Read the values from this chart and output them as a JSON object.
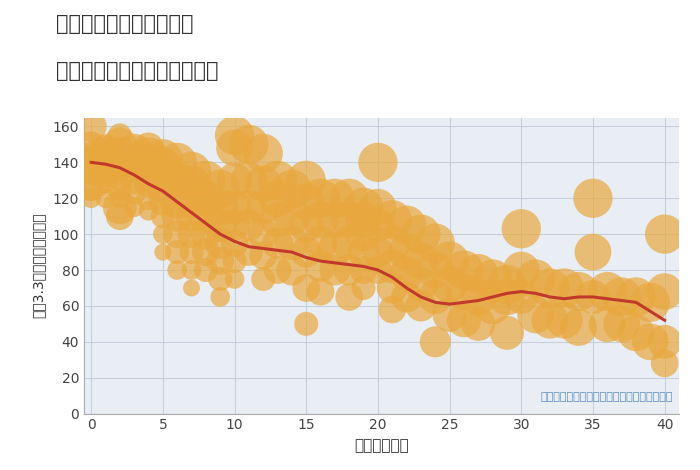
{
  "title_line1": "神奈川県座間市相模が丘",
  "title_line2": "築年数別中古マンション価格",
  "xlabel": "築年数（年）",
  "ylabel": "坪（3.3㎡）単価（万円）",
  "annotation": "円の大きさは、取引のあった物件面積を示す",
  "xlim": [
    -0.5,
    41
  ],
  "ylim": [
    0,
    165
  ],
  "xticks": [
    0,
    5,
    10,
    15,
    20,
    25,
    30,
    35,
    40
  ],
  "yticks": [
    0,
    20,
    40,
    60,
    80,
    100,
    120,
    140,
    160
  ],
  "fig_bg_color": "#f0f4f8",
  "plot_bg_color": "#e8eef4",
  "scatter_color": "#E8A83E",
  "scatter_alpha": 0.7,
  "line_color": "#C0392B",
  "line_width": 2.2,
  "trend_x": [
    0,
    1,
    2,
    3,
    4,
    5,
    6,
    7,
    8,
    9,
    10,
    11,
    12,
    13,
    14,
    15,
    16,
    17,
    18,
    19,
    20,
    21,
    22,
    23,
    24,
    25,
    26,
    27,
    28,
    29,
    30,
    31,
    32,
    33,
    34,
    35,
    36,
    37,
    38,
    39,
    40
  ],
  "trend_y": [
    140,
    139,
    137,
    133,
    128,
    124,
    118,
    112,
    106,
    100,
    96,
    93,
    92,
    91,
    90,
    87,
    85,
    84,
    83,
    82,
    80,
    76,
    70,
    65,
    62,
    61,
    62,
    63,
    65,
    67,
    68,
    67,
    65,
    64,
    65,
    65,
    64,
    63,
    62,
    57,
    52
  ],
  "scatter_x": [
    0,
    0,
    0,
    0,
    0,
    0,
    0,
    0,
    1,
    1,
    1,
    1,
    1,
    1,
    1,
    2,
    2,
    2,
    2,
    2,
    2,
    2,
    2,
    2,
    3,
    3,
    3,
    3,
    3,
    4,
    4,
    4,
    4,
    4,
    4,
    5,
    5,
    5,
    5,
    5,
    5,
    5,
    5,
    6,
    6,
    6,
    6,
    6,
    6,
    6,
    7,
    7,
    7,
    7,
    7,
    7,
    7,
    7,
    8,
    8,
    8,
    8,
    8,
    8,
    9,
    9,
    9,
    9,
    9,
    9,
    9,
    10,
    10,
    10,
    10,
    10,
    10,
    10,
    10,
    11,
    11,
    11,
    11,
    11,
    12,
    12,
    12,
    12,
    12,
    12,
    13,
    13,
    13,
    13,
    13,
    14,
    14,
    14,
    14,
    15,
    15,
    15,
    15,
    15,
    15,
    16,
    16,
    16,
    16,
    16,
    17,
    17,
    17,
    17,
    18,
    18,
    18,
    18,
    18,
    19,
    19,
    19,
    19,
    19,
    19,
    20,
    20,
    20,
    20,
    20,
    21,
    21,
    21,
    21,
    21,
    22,
    22,
    22,
    22,
    23,
    23,
    23,
    23,
    24,
    24,
    24,
    24,
    25,
    25,
    25,
    26,
    26,
    26,
    27,
    27,
    27,
    28,
    28,
    29,
    29,
    29,
    30,
    30,
    30,
    31,
    31,
    32,
    32,
    33,
    33,
    34,
    34,
    35,
    35,
    35,
    36,
    36,
    37,
    37,
    38,
    38,
    39,
    39,
    40,
    40,
    40,
    40
  ],
  "scatter_y": [
    160,
    150,
    145,
    140,
    135,
    130,
    125,
    120,
    148,
    145,
    143,
    140,
    135,
    130,
    120,
    155,
    150,
    143,
    138,
    132,
    125,
    120,
    115,
    110,
    145,
    138,
    130,
    123,
    115,
    148,
    143,
    135,
    128,
    120,
    113,
    142,
    138,
    132,
    125,
    118,
    110,
    100,
    90,
    140,
    130,
    118,
    110,
    100,
    90,
    80,
    135,
    128,
    118,
    110,
    100,
    90,
    80,
    70,
    130,
    120,
    110,
    100,
    90,
    80,
    125,
    115,
    105,
    95,
    85,
    75,
    65,
    155,
    148,
    130,
    115,
    105,
    95,
    85,
    75,
    150,
    130,
    115,
    105,
    90,
    145,
    128,
    115,
    100,
    88,
    75,
    130,
    120,
    108,
    95,
    80,
    125,
    110,
    95,
    80,
    130,
    118,
    105,
    90,
    70,
    50,
    120,
    108,
    95,
    82,
    68,
    120,
    108,
    92,
    80,
    120,
    108,
    95,
    80,
    65,
    115,
    108,
    100,
    90,
    80,
    70,
    140,
    115,
    105,
    90,
    80,
    108,
    95,
    82,
    70,
    58,
    105,
    90,
    78,
    65,
    100,
    85,
    72,
    60,
    95,
    80,
    65,
    40,
    85,
    72,
    55,
    80,
    68,
    52,
    78,
    65,
    50,
    75,
    60,
    72,
    65,
    45,
    103,
    80,
    65,
    75,
    55,
    70,
    52,
    70,
    52,
    68,
    48,
    120,
    90,
    65,
    68,
    50,
    65,
    50,
    65,
    45,
    62,
    40,
    100,
    68,
    40,
    28
  ],
  "scatter_size": [
    500,
    350,
    300,
    600,
    400,
    800,
    300,
    200,
    400,
    600,
    300,
    800,
    500,
    350,
    200,
    300,
    600,
    800,
    500,
    400,
    300,
    200,
    600,
    400,
    800,
    600,
    400,
    300,
    200,
    500,
    800,
    600,
    400,
    300,
    200,
    800,
    700,
    600,
    500,
    400,
    300,
    200,
    150,
    800,
    700,
    600,
    500,
    400,
    300,
    200,
    800,
    700,
    600,
    500,
    400,
    300,
    200,
    150,
    800,
    700,
    600,
    500,
    400,
    300,
    800,
    700,
    600,
    500,
    400,
    300,
    200,
    800,
    700,
    650,
    600,
    500,
    400,
    300,
    200,
    800,
    700,
    600,
    500,
    400,
    800,
    700,
    600,
    500,
    400,
    300,
    800,
    700,
    600,
    500,
    400,
    800,
    700,
    600,
    500,
    800,
    700,
    600,
    500,
    400,
    300,
    800,
    700,
    600,
    500,
    400,
    800,
    700,
    600,
    500,
    800,
    700,
    600,
    500,
    400,
    800,
    700,
    600,
    500,
    400,
    300,
    800,
    700,
    600,
    500,
    400,
    800,
    700,
    600,
    500,
    400,
    800,
    700,
    600,
    500,
    800,
    700,
    600,
    500,
    800,
    700,
    600,
    500,
    800,
    700,
    600,
    800,
    700,
    600,
    800,
    700,
    600,
    800,
    700,
    800,
    700,
    600,
    800,
    700,
    600,
    800,
    700,
    800,
    700,
    800,
    700,
    800,
    700,
    800,
    700,
    600,
    800,
    700,
    800,
    700,
    800,
    700,
    800,
    700,
    800,
    700,
    600,
    400
  ]
}
